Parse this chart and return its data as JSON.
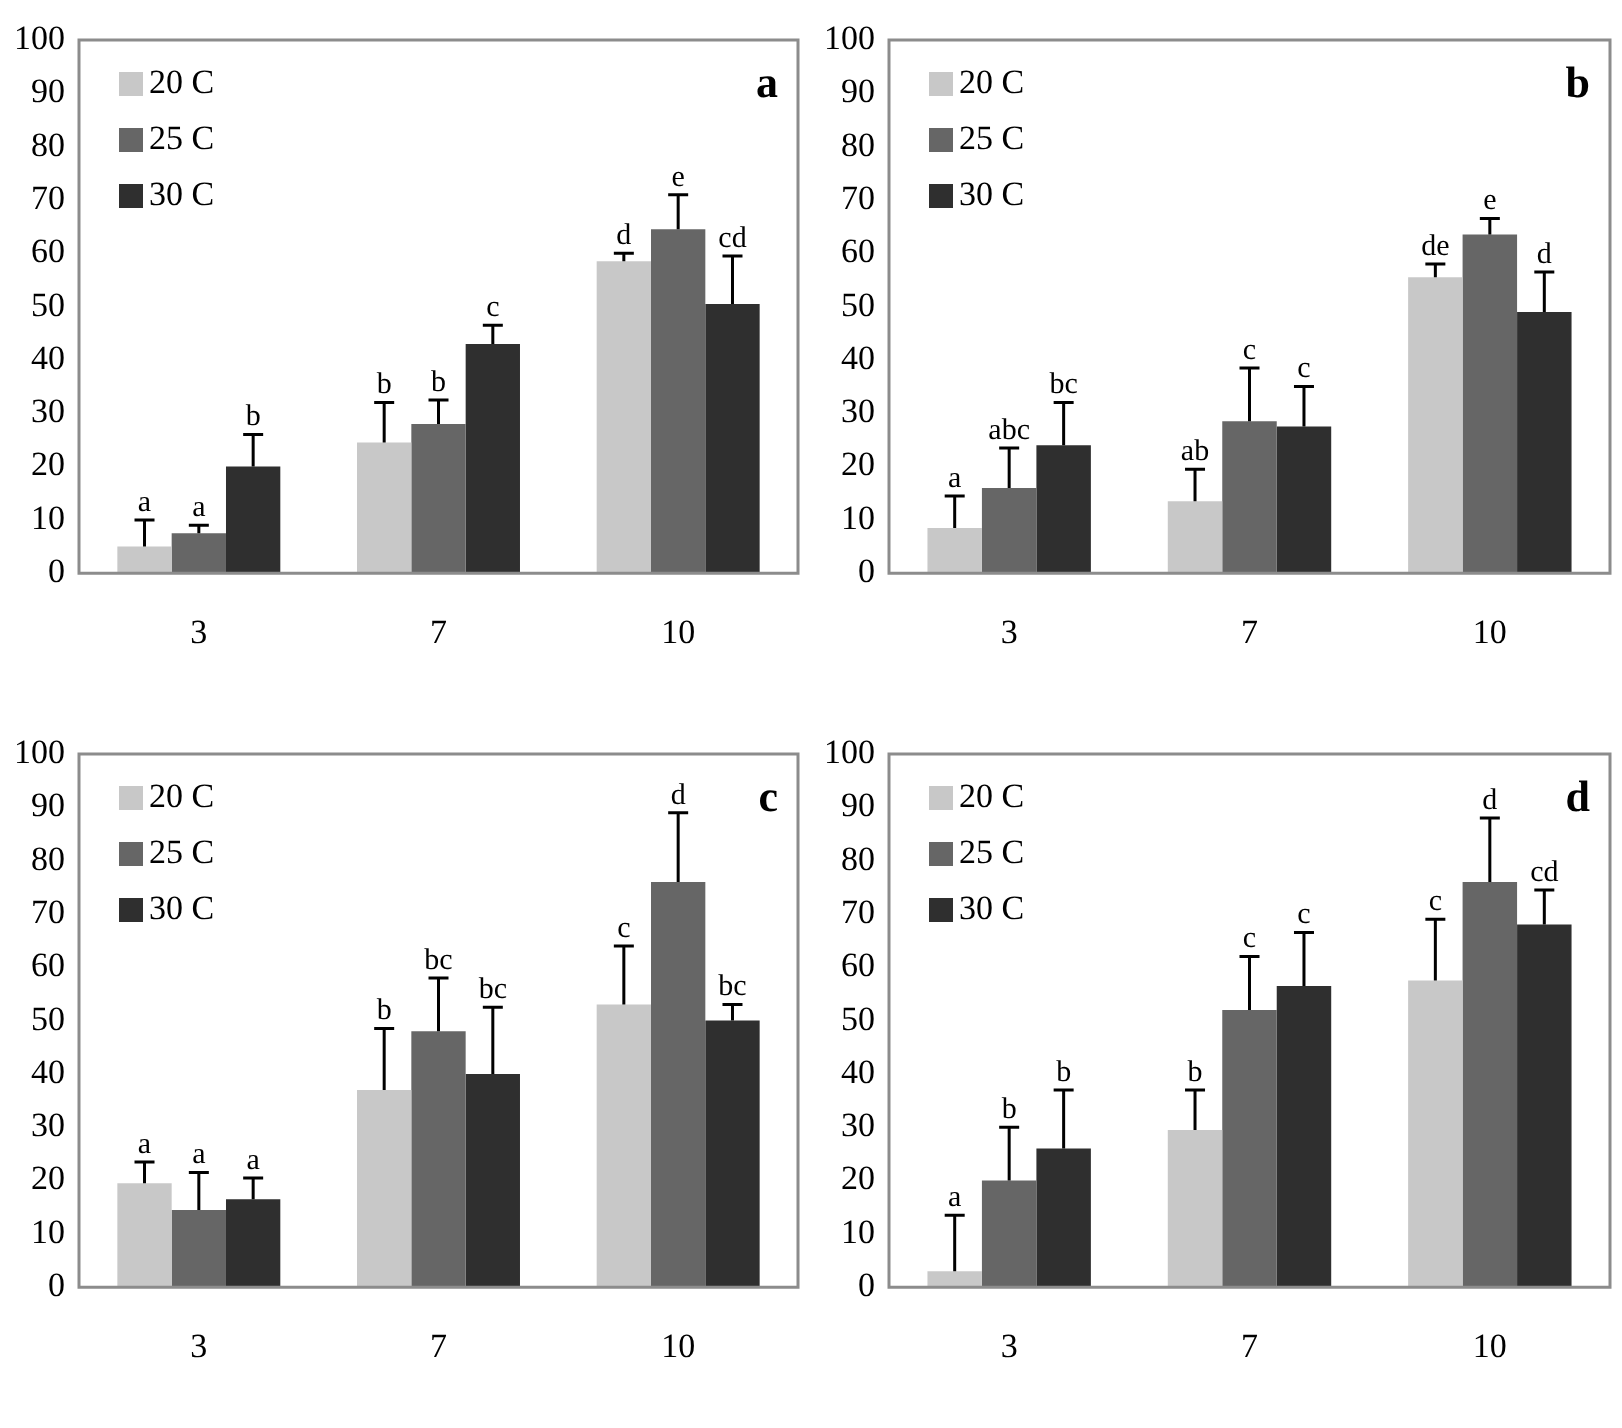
{
  "chart_data": [
    {
      "type": "bar",
      "title": "a",
      "categories": [
        "3",
        "7",
        "10"
      ],
      "ylim": [
        0,
        100
      ],
      "yticks": [
        0,
        10,
        20,
        30,
        40,
        50,
        60,
        70,
        80,
        90,
        100
      ],
      "grid": false,
      "legend": "top left",
      "series": [
        {
          "name": "20 C",
          "color": "#c8c8c8",
          "values": [
            5,
            24.5,
            58.5
          ],
          "errors": [
            [
              5,
              10
            ],
            [
              24.5,
              32
            ],
            [
              58.5,
              60
            ]
          ],
          "value_labels": [
            "a",
            "b",
            "d"
          ]
        },
        {
          "name": "25 C",
          "color": "#666666",
          "values": [
            7.5,
            28,
            64.5
          ],
          "errors": [
            [
              7.5,
              9
            ],
            [
              28,
              32.5
            ],
            [
              64.5,
              71
            ]
          ],
          "value_labels": [
            "a",
            "b",
            "e"
          ]
        },
        {
          "name": "30 C",
          "color": "#2f2f2f",
          "values": [
            20,
            43,
            50.5
          ],
          "errors": [
            [
              20,
              26
            ],
            [
              43,
              46.5
            ],
            [
              50.5,
              59.5
            ]
          ],
          "value_labels": [
            "b",
            "c",
            "cd"
          ]
        }
      ]
    },
    {
      "type": "bar",
      "title": "b",
      "categories": [
        "3",
        "7",
        "10"
      ],
      "ylim": [
        0,
        100
      ],
      "yticks": [
        0,
        10,
        20,
        30,
        40,
        50,
        60,
        70,
        80,
        90,
        100
      ],
      "grid": false,
      "legend": "top left",
      "series": [
        {
          "name": "20 C",
          "color": "#c8c8c8",
          "values": [
            8.5,
            13.5,
            55.5
          ],
          "errors": [
            [
              8.5,
              14.5
            ],
            [
              13.5,
              19.5
            ],
            [
              55.5,
              58
            ]
          ],
          "value_labels": [
            "a",
            "ab",
            "de"
          ]
        },
        {
          "name": "25 C",
          "color": "#666666",
          "values": [
            16,
            28.5,
            63.5
          ],
          "errors": [
            [
              16,
              23.5
            ],
            [
              28.5,
              38.5
            ],
            [
              63.5,
              66.5
            ]
          ],
          "value_labels": [
            "abc",
            "c",
            "e"
          ]
        },
        {
          "name": "30 C",
          "color": "#2f2f2f",
          "values": [
            24,
            27.5,
            49
          ],
          "errors": [
            [
              24,
              32
            ],
            [
              27.5,
              35
            ],
            [
              49,
              56.5
            ]
          ],
          "value_labels": [
            "bc",
            "c",
            "d"
          ]
        }
      ]
    },
    {
      "type": "bar",
      "title": "c",
      "categories": [
        "3",
        "7",
        "10"
      ],
      "ylim": [
        0,
        100
      ],
      "yticks": [
        0,
        10,
        20,
        30,
        40,
        50,
        60,
        70,
        80,
        90,
        100
      ],
      "grid": false,
      "legend": "top left",
      "series": [
        {
          "name": "20 C",
          "color": "#c8c8c8",
          "values": [
            19.5,
            37,
            53
          ],
          "errors": [
            [
              19.5,
              23.5
            ],
            [
              37,
              48.5
            ],
            [
              53,
              64
            ]
          ],
          "value_labels": [
            "a",
            "b",
            "c"
          ]
        },
        {
          "name": "25 C",
          "color": "#666666",
          "values": [
            14.5,
            48,
            76
          ],
          "errors": [
            [
              14.5,
              21.5
            ],
            [
              48,
              58
            ],
            [
              76,
              89
            ]
          ],
          "value_labels": [
            "a",
            "bc",
            "d"
          ]
        },
        {
          "name": "30 C",
          "color": "#2f2f2f",
          "values": [
            16.5,
            40,
            50
          ],
          "errors": [
            [
              16.5,
              20.5
            ],
            [
              40,
              52.5
            ],
            [
              50,
              53
            ]
          ],
          "value_labels": [
            "a",
            "bc",
            "bc"
          ]
        }
      ]
    },
    {
      "type": "bar",
      "title": "d",
      "categories": [
        "3",
        "7",
        "10"
      ],
      "ylim": [
        0,
        100
      ],
      "yticks": [
        0,
        10,
        20,
        30,
        40,
        50,
        60,
        70,
        80,
        90,
        100
      ],
      "grid": false,
      "legend": "top left",
      "series": [
        {
          "name": "20 C",
          "color": "#c8c8c8",
          "values": [
            3,
            29.5,
            57.5
          ],
          "errors": [
            [
              3,
              13.5
            ],
            [
              29.5,
              37
            ],
            [
              57.5,
              69
            ]
          ],
          "value_labels": [
            "a",
            "b",
            "c"
          ]
        },
        {
          "name": "25 C",
          "color": "#666666",
          "values": [
            20,
            52,
            76
          ],
          "errors": [
            [
              20,
              30
            ],
            [
              52,
              62
            ],
            [
              76,
              88
            ]
          ],
          "value_labels": [
            "b",
            "c",
            "d"
          ]
        },
        {
          "name": "30 C",
          "color": "#2f2f2f",
          "values": [
            26,
            56.5,
            68
          ],
          "errors": [
            [
              26,
              37
            ],
            [
              56.5,
              66.5
            ],
            [
              68,
              74.5
            ]
          ],
          "value_labels": [
            "b",
            "c",
            "cd"
          ]
        }
      ]
    }
  ]
}
